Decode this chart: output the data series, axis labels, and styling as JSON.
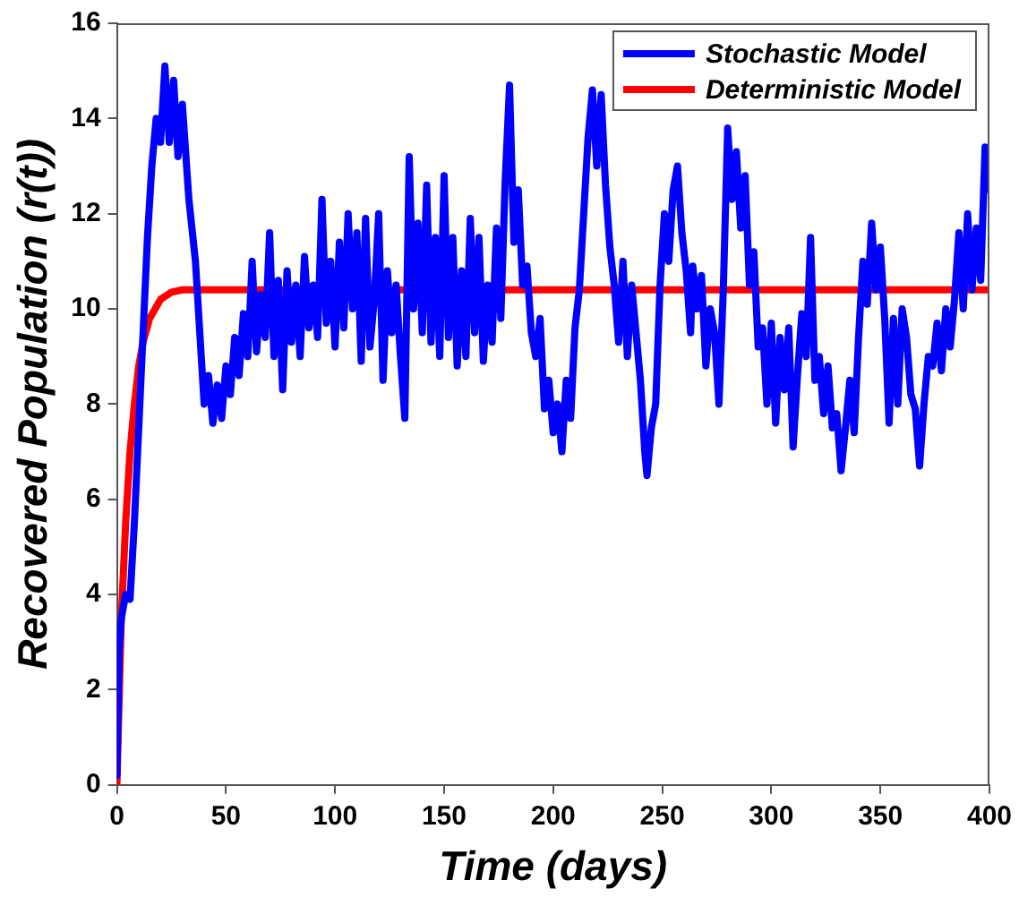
{
  "chart_data": {
    "type": "line",
    "xlabel": "Time (days)",
    "ylabel": "Recovered Population (r(t))",
    "xlim": [
      0,
      400
    ],
    "xticks": [
      0,
      50,
      100,
      150,
      200,
      250,
      300,
      350,
      400
    ],
    "ylim": [
      0,
      16
    ],
    "yticks": [
      0,
      2,
      4,
      6,
      8,
      10,
      12,
      14,
      16
    ],
    "legend": "top right",
    "series": [
      {
        "name": "Stochastic Model",
        "color": "#0000ff",
        "x": [
          0,
          1,
          2,
          4,
          6,
          8,
          10,
          12,
          14,
          16,
          18,
          20,
          22,
          24,
          26,
          28,
          30,
          33,
          36,
          38,
          40,
          42,
          44,
          46,
          48,
          50,
          52,
          54,
          56,
          58,
          60,
          62,
          64,
          66,
          68,
          70,
          72,
          74,
          76,
          78,
          80,
          82,
          84,
          86,
          88,
          90,
          92,
          94,
          96,
          98,
          100,
          102,
          104,
          106,
          108,
          110,
          112,
          114,
          116,
          118,
          120,
          122,
          124,
          126,
          128,
          130,
          132,
          134,
          136,
          138,
          140,
          142,
          144,
          146,
          148,
          150,
          152,
          154,
          156,
          158,
          160,
          162,
          164,
          166,
          168,
          170,
          172,
          174,
          176,
          178,
          180,
          182,
          184,
          186,
          188,
          190,
          192,
          194,
          196,
          198,
          200,
          202,
          204,
          206,
          208,
          210,
          212,
          214,
          216,
          218,
          220,
          222,
          224,
          226,
          228,
          230,
          232,
          234,
          236,
          238,
          240,
          242,
          243,
          245,
          247,
          249,
          251,
          253,
          255,
          257,
          259,
          261,
          263,
          264,
          266,
          268,
          270,
          272,
          274,
          276,
          278,
          280,
          282,
          284,
          286,
          288,
          290,
          292,
          294,
          296,
          298,
          300,
          302,
          304,
          306,
          308,
          310,
          312,
          314,
          316,
          318,
          320,
          322,
          324,
          326,
          328,
          330,
          332,
          334,
          336,
          338,
          340,
          342,
          344,
          346,
          348,
          350,
          352,
          354,
          356,
          358,
          360,
          362,
          364,
          366,
          368,
          370,
          372,
          374,
          376,
          378,
          380,
          382,
          384,
          386,
          388,
          390,
          392,
          394,
          396,
          398,
          400
        ],
        "values": [
          0.2,
          2.8,
          3.5,
          4.0,
          3.9,
          5.5,
          7.5,
          9.5,
          11.5,
          13.0,
          14.0,
          13.5,
          15.1,
          13.5,
          14.8,
          13.2,
          14.3,
          12.3,
          11.0,
          9.5,
          8.0,
          8.6,
          7.6,
          8.4,
          7.7,
          8.8,
          8.2,
          9.4,
          8.6,
          9.9,
          9.0,
          11.0,
          9.1,
          10.3,
          9.4,
          11.6,
          9.0,
          10.6,
          8.3,
          10.8,
          9.3,
          10.5,
          9.0,
          11.1,
          9.6,
          10.5,
          9.4,
          12.3,
          9.7,
          11.0,
          9.2,
          11.4,
          9.6,
          12.0,
          10.0,
          11.6,
          8.9,
          11.9,
          9.2,
          10.2,
          12.0,
          8.5,
          10.8,
          9.5,
          10.5,
          9.0,
          7.7,
          13.2,
          10.0,
          11.8,
          9.5,
          12.6,
          9.3,
          11.5,
          9.0,
          12.8,
          9.4,
          11.5,
          8.8,
          10.8,
          9.0,
          11.9,
          9.5,
          11.5,
          8.9,
          10.5,
          9.3,
          11.7,
          9.8,
          12.7,
          14.7,
          11.4,
          12.5,
          10.5,
          10.9,
          9.5,
          9.0,
          9.8,
          7.9,
          8.5,
          7.4,
          8.0,
          7.0,
          8.5,
          7.7,
          9.6,
          10.4,
          12.0,
          13.6,
          14.6,
          13.0,
          14.5,
          12.6,
          11.3,
          10.5,
          9.3,
          11.0,
          9.0,
          10.5,
          9.5,
          8.5,
          7.0,
          6.5,
          7.5,
          8.0,
          10.5,
          12.0,
          11.0,
          12.5,
          13.0,
          11.6,
          10.8,
          9.5,
          10.9,
          10.0,
          10.7,
          8.8,
          10.0,
          9.5,
          8.0,
          10.4,
          13.8,
          12.3,
          13.3,
          11.7,
          12.8,
          10.5,
          11.2,
          9.2,
          9.6,
          8.0,
          9.7,
          7.6,
          9.4,
          8.3,
          9.6,
          7.1,
          8.6,
          9.9,
          9.0,
          11.5,
          8.5,
          9.0,
          7.8,
          8.8,
          7.5,
          7.8,
          6.6,
          7.5,
          8.5,
          7.4,
          9.4,
          11.0,
          10.1,
          11.8,
          10.4,
          11.3,
          9.8,
          7.6,
          9.8,
          8.0,
          10.0,
          9.4,
          8.2,
          7.9,
          6.7,
          8.0,
          9.0,
          8.8,
          9.7,
          8.7,
          10.0,
          9.2,
          10.2,
          11.6,
          10.0,
          12.0,
          10.4,
          11.7,
          10.6,
          13.4,
          12.5
        ]
      },
      {
        "name": "Deterministic Model",
        "color": "#ff0000",
        "x": [
          0,
          2,
          4,
          6,
          8,
          10,
          12,
          15,
          20,
          25,
          30,
          40,
          400
        ],
        "values": [
          0,
          3.5,
          5.5,
          7.0,
          8.0,
          8.8,
          9.3,
          9.8,
          10.2,
          10.35,
          10.4,
          10.4,
          10.4
        ]
      }
    ]
  }
}
